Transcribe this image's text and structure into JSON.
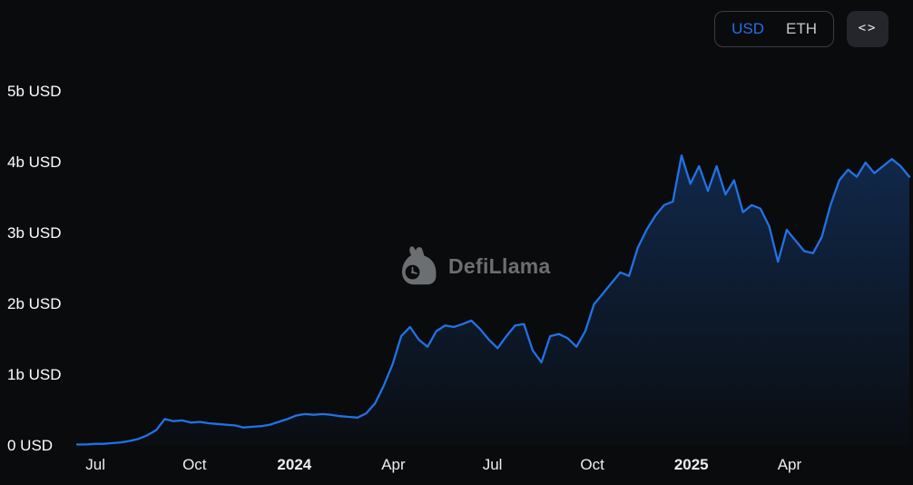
{
  "controls": {
    "currency_toggle": {
      "options": [
        "USD",
        "ETH"
      ],
      "selected": "USD"
    },
    "embed_icon_glyph": "<>"
  },
  "watermark": {
    "text": "DefiLlama"
  },
  "colors": {
    "accent": "#2172e5",
    "background": "#0a0b0d"
  },
  "chart_data": {
    "type": "area",
    "line_color": "#2172e5",
    "grid": false,
    "ylim": [
      0,
      5
    ],
    "y_ticks": [
      {
        "value": 0,
        "label": "0 USD"
      },
      {
        "value": 1,
        "label": "1b USD"
      },
      {
        "value": 2,
        "label": "2b USD"
      },
      {
        "value": 3,
        "label": "3b USD"
      },
      {
        "value": 4,
        "label": "4b USD"
      },
      {
        "value": 5,
        "label": "5b USD"
      }
    ],
    "x_ticks": [
      {
        "label": "Jul",
        "pos": 0.022,
        "bold": false
      },
      {
        "label": "Oct",
        "pos": 0.141,
        "bold": false
      },
      {
        "label": "2024",
        "pos": 0.261,
        "bold": true
      },
      {
        "label": "Apr",
        "pos": 0.38,
        "bold": false
      },
      {
        "label": "Jul",
        "pos": 0.499,
        "bold": false
      },
      {
        "label": "Oct",
        "pos": 0.619,
        "bold": false
      },
      {
        "label": "2025",
        "pos": 0.738,
        "bold": true
      },
      {
        "label": "Apr",
        "pos": 0.856,
        "bold": false
      }
    ],
    "unit": "USD (billions)",
    "values": [
      0.02,
      0.02,
      0.03,
      0.03,
      0.04,
      0.05,
      0.07,
      0.1,
      0.15,
      0.22,
      0.38,
      0.35,
      0.36,
      0.33,
      0.34,
      0.32,
      0.31,
      0.3,
      0.29,
      0.26,
      0.27,
      0.28,
      0.3,
      0.34,
      0.38,
      0.43,
      0.45,
      0.44,
      0.45,
      0.44,
      0.42,
      0.41,
      0.4,
      0.46,
      0.6,
      0.85,
      1.15,
      1.55,
      1.68,
      1.5,
      1.4,
      1.62,
      1.7,
      1.68,
      1.72,
      1.77,
      1.65,
      1.5,
      1.38,
      1.55,
      1.7,
      1.72,
      1.35,
      1.18,
      1.55,
      1.58,
      1.52,
      1.4,
      1.62,
      2.0,
      2.15,
      2.3,
      2.45,
      2.4,
      2.8,
      3.05,
      3.25,
      3.4,
      3.45,
      4.1,
      3.7,
      3.95,
      3.6,
      3.95,
      3.55,
      3.75,
      3.3,
      3.4,
      3.35,
      3.1,
      2.6,
      3.05,
      2.9,
      2.75,
      2.72,
      2.95,
      3.4,
      3.75,
      3.9,
      3.8,
      4.0,
      3.85,
      3.95,
      4.05,
      3.95,
      3.8
    ]
  }
}
